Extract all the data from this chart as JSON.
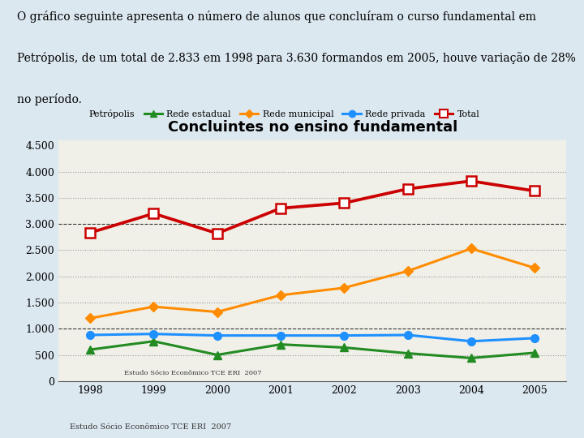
{
  "title": "Concluintes no ensino fundamental",
  "years": [
    1998,
    1999,
    2000,
    2001,
    2002,
    2003,
    2004,
    2005
  ],
  "rede_estadual": [
    600,
    760,
    500,
    700,
    640,
    530,
    440,
    540
  ],
  "rede_municipal": [
    1200,
    1420,
    1320,
    1640,
    1780,
    2100,
    2530,
    2160
  ],
  "rede_privada": [
    880,
    900,
    870,
    870,
    870,
    880,
    760,
    820
  ],
  "total": [
    2833,
    3200,
    2820,
    3300,
    3400,
    3670,
    3820,
    3630
  ],
  "colors": {
    "rede_estadual": "#228B22",
    "rede_municipal": "#FF8C00",
    "rede_privada": "#1E90FF",
    "total": "#CC0000"
  },
  "yticks": [
    0,
    500,
    1000,
    1500,
    2000,
    2500,
    3000,
    3500,
    4000,
    4500
  ],
  "ylim": [
    0,
    4600
  ],
  "annotation": "Estudo Sócio Econômico TCE ERI  2007",
  "text_block_line1": "O gráfico seguinte apresenta o número de alunos que concluíram o curso fundamental em",
  "text_block_line2": "Petrópolis, de um total de 2.833 em 1998 para 3.630 formandos em 2005, houve variação de 28%",
  "text_block_line3": "no período.",
  "background_color": "#dce8f0",
  "plot_bg_color": "#f0f0e8"
}
